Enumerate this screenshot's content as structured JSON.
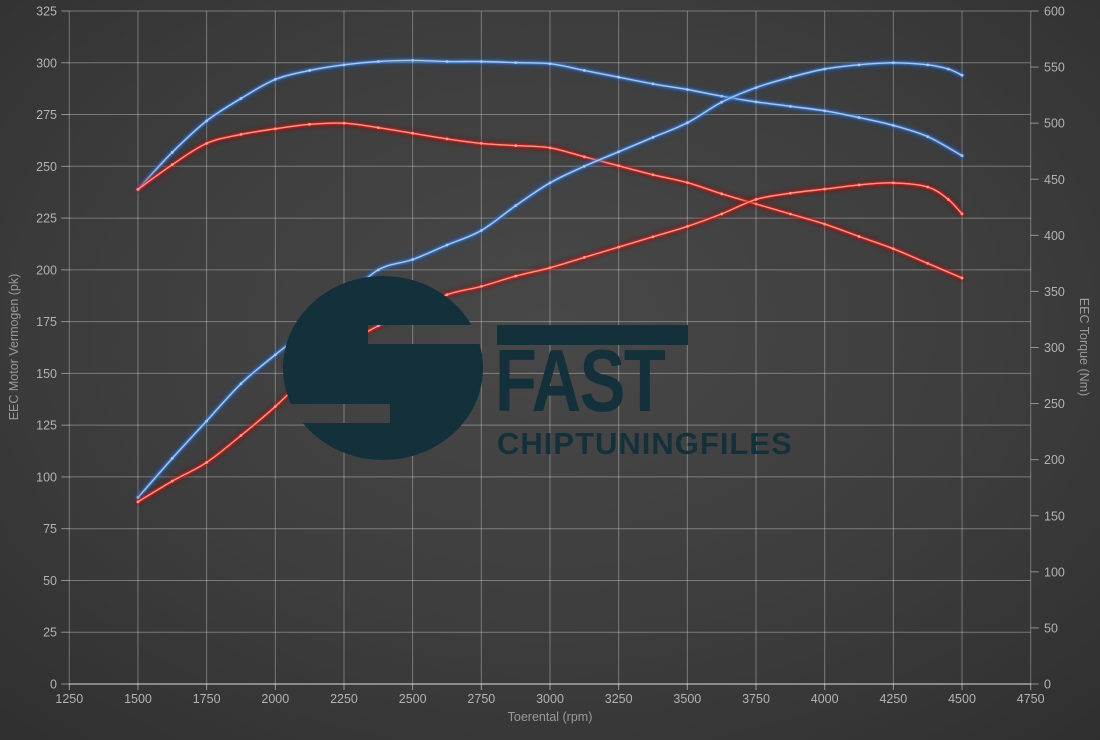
{
  "watermark": {
    "title": "FAST",
    "subtitle": "CHIPTUNINGFILES",
    "color": "#13303b"
  },
  "chart_data": {
    "type": "line",
    "title": "",
    "xlabel": "Toerental (rpm)",
    "ylabel_left": "EEC Motor Vermogen (pk)",
    "ylabel_right": "EEC Torque (Nm)",
    "x_range": [
      1250,
      4750
    ],
    "x_ticks": [
      1250,
      1500,
      1750,
      2000,
      2250,
      2500,
      2750,
      3000,
      3250,
      3500,
      3750,
      4000,
      4250,
      4500,
      4750
    ],
    "y_left_range": [
      0,
      325
    ],
    "y_left_ticks": [
      0,
      25,
      50,
      75,
      100,
      125,
      150,
      175,
      200,
      225,
      250,
      275,
      300,
      325
    ],
    "y_right_range": [
      0,
      600
    ],
    "y_right_ticks": [
      0,
      50,
      100,
      150,
      200,
      250,
      300,
      350,
      400,
      450,
      500,
      550,
      600
    ],
    "grid": true,
    "legend": "none",
    "colors": {
      "grid": "#ffffff",
      "tick_text": "#b3b3b3",
      "axis_title_text": "#9a9a9a",
      "blue_main": "#3f7fd6",
      "blue_core": "#a9cdf4",
      "blue_glow": "#1c55b4",
      "red_main": "#e02318",
      "red_core": "#ff9d8d",
      "red_glow": "#8e1008"
    },
    "series": [
      {
        "id": "blue-torque-curve",
        "axis": "right",
        "color": "blue",
        "unit": "Nm",
        "points": [
          [
            1500,
            441
          ],
          [
            1625,
            474
          ],
          [
            1750,
            502
          ],
          [
            1875,
            522
          ],
          [
            2000,
            539
          ],
          [
            2125,
            547
          ],
          [
            2250,
            552
          ],
          [
            2375,
            555
          ],
          [
            2500,
            556
          ],
          [
            2625,
            555
          ],
          [
            2750,
            555
          ],
          [
            2875,
            554
          ],
          [
            3000,
            553
          ],
          [
            3125,
            547
          ],
          [
            3250,
            541
          ],
          [
            3375,
            535
          ],
          [
            3500,
            530
          ],
          [
            3625,
            524
          ],
          [
            3750,
            519
          ],
          [
            3875,
            515
          ],
          [
            4000,
            511
          ],
          [
            4125,
            505
          ],
          [
            4250,
            498
          ],
          [
            4375,
            488
          ],
          [
            4500,
            471
          ]
        ]
      },
      {
        "id": "red-torque-curve",
        "axis": "right",
        "color": "red",
        "unit": "Nm",
        "points": [
          [
            1500,
            441
          ],
          [
            1625,
            463
          ],
          [
            1750,
            482
          ],
          [
            1875,
            490
          ],
          [
            2000,
            495
          ],
          [
            2125,
            499
          ],
          [
            2250,
            500
          ],
          [
            2375,
            496
          ],
          [
            2500,
            491
          ],
          [
            2625,
            486
          ],
          [
            2750,
            482
          ],
          [
            2875,
            480
          ],
          [
            3000,
            478
          ],
          [
            3125,
            470
          ],
          [
            3250,
            462
          ],
          [
            3375,
            454
          ],
          [
            3500,
            447
          ],
          [
            3625,
            437
          ],
          [
            3750,
            428
          ],
          [
            3875,
            419
          ],
          [
            4000,
            410
          ],
          [
            4125,
            399
          ],
          [
            4250,
            388
          ],
          [
            4375,
            375
          ],
          [
            4500,
            362
          ]
        ]
      },
      {
        "id": "blue-power-curve",
        "axis": "left",
        "color": "blue",
        "unit": "pk",
        "points": [
          [
            1500,
            90
          ],
          [
            1625,
            109
          ],
          [
            1750,
            127
          ],
          [
            1875,
            145
          ],
          [
            2000,
            159
          ],
          [
            2125,
            172
          ],
          [
            2250,
            186
          ],
          [
            2375,
            200
          ],
          [
            2500,
            205
          ],
          [
            2625,
            212
          ],
          [
            2750,
            219
          ],
          [
            2875,
            231
          ],
          [
            3000,
            242
          ],
          [
            3125,
            250
          ],
          [
            3250,
            257
          ],
          [
            3375,
            264
          ],
          [
            3500,
            271
          ],
          [
            3625,
            281
          ],
          [
            3750,
            288
          ],
          [
            3875,
            293
          ],
          [
            4000,
            297
          ],
          [
            4125,
            299
          ],
          [
            4250,
            300
          ],
          [
            4375,
            299
          ],
          [
            4450,
            297
          ],
          [
            4500,
            294
          ]
        ]
      },
      {
        "id": "red-power-curve",
        "axis": "left",
        "color": "red",
        "unit": "pk",
        "points": [
          [
            1500,
            88
          ],
          [
            1625,
            98
          ],
          [
            1750,
            107
          ],
          [
            1875,
            120
          ],
          [
            2000,
            134
          ],
          [
            2125,
            150
          ],
          [
            2250,
            163
          ],
          [
            2375,
            173
          ],
          [
            2500,
            180
          ],
          [
            2625,
            188
          ],
          [
            2750,
            192
          ],
          [
            2875,
            197
          ],
          [
            3000,
            201
          ],
          [
            3125,
            206
          ],
          [
            3250,
            211
          ],
          [
            3375,
            216
          ],
          [
            3500,
            221
          ],
          [
            3625,
            227
          ],
          [
            3750,
            234
          ],
          [
            3875,
            237
          ],
          [
            4000,
            239
          ],
          [
            4125,
            241
          ],
          [
            4250,
            242
          ],
          [
            4375,
            240
          ],
          [
            4450,
            234
          ],
          [
            4500,
            227
          ]
        ]
      }
    ]
  }
}
